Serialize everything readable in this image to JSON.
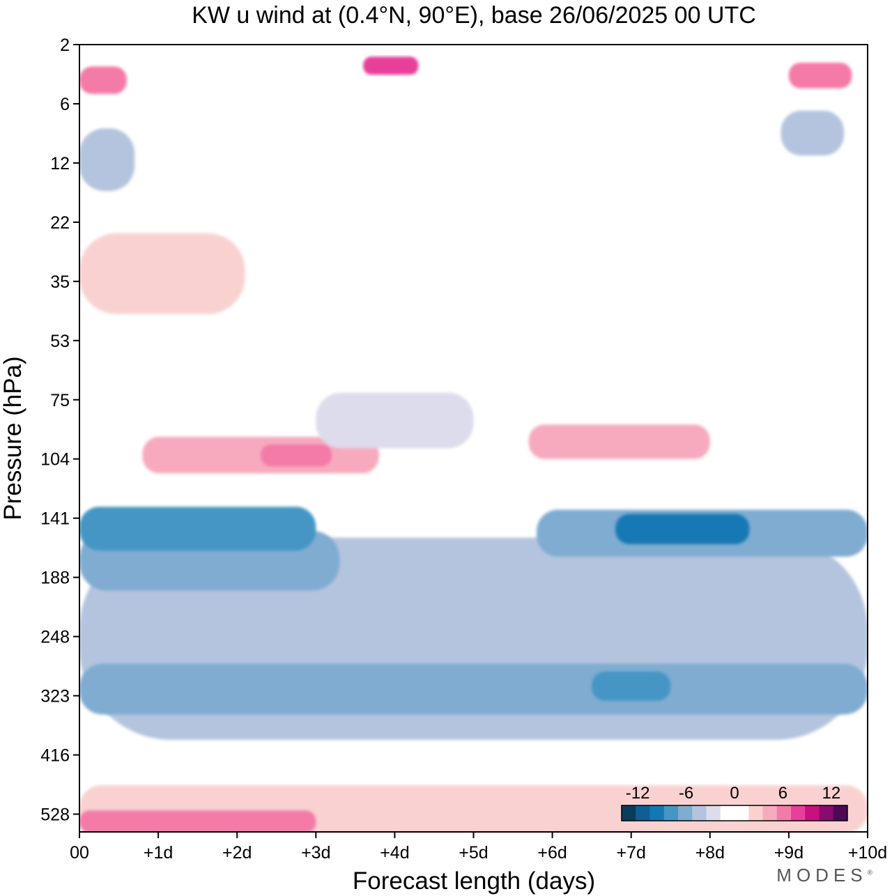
{
  "chart_data": {
    "type": "heatmap",
    "title": "KW u wind at (0.4°N, 90°E),  base 26/06/2025  00 UTC",
    "xlabel": "Forecast length (days)",
    "ylabel": "Pressure (hPa)",
    "x_ticks": [
      "00",
      "+1d",
      "+2d",
      "+3d",
      "+4d",
      "+5d",
      "+6d",
      "+7d",
      "+8d",
      "+9d",
      "+10d"
    ],
    "y_ticks": [
      "2",
      "6",
      "12",
      "22",
      "35",
      "53",
      "75",
      "104",
      "141",
      "188",
      "248",
      "323",
      "416",
      "528"
    ],
    "xlim": [
      0,
      10
    ],
    "colorbar": {
      "tick_labels": [
        "-12",
        "-6",
        "0",
        "6",
        "12"
      ],
      "tick_values": [
        -12,
        -6,
        0,
        6,
        12
      ],
      "levels": [
        -14,
        -12,
        -10,
        -8,
        -6,
        -4,
        -2,
        -1,
        1,
        2,
        4,
        6,
        8,
        10,
        12,
        14
      ],
      "colors": [
        "#0a3d5c",
        "#0e5f96",
        "#1478b4",
        "#4496c4",
        "#80acd2",
        "#b4c4de",
        "#dcdcec",
        "#ffffff",
        "#ffffff",
        "#f9d1d1",
        "#f7aabe",
        "#f47aa8",
        "#e8409a",
        "#c8107e",
        "#8a0a70",
        "#4a0a55"
      ],
      "placement": "bottom-right"
    },
    "fields": [
      {
        "value": -3,
        "day_start": 0,
        "day_end": 10,
        "p_top": 155,
        "p_bottom": 390
      },
      {
        "value": -5,
        "day_start": 0,
        "day_end": 3.3,
        "p_top": 150,
        "p_bottom": 200
      },
      {
        "value": -7,
        "day_start": 0,
        "day_end": 3.0,
        "p_top": 133,
        "p_bottom": 165
      },
      {
        "value": -5,
        "day_start": 5.8,
        "day_end": 10,
        "p_top": 135,
        "p_bottom": 170
      },
      {
        "value": -9,
        "day_start": 6.8,
        "day_end": 8.5,
        "p_top": 138,
        "p_bottom": 160
      },
      {
        "value": -5,
        "day_start": 0,
        "day_end": 10,
        "p_top": 280,
        "p_bottom": 350
      },
      {
        "value": -7,
        "day_start": 6.5,
        "day_end": 7.5,
        "p_top": 290,
        "p_bottom": 330
      },
      {
        "value": 5,
        "day_start": 0.8,
        "day_end": 3.8,
        "p_top": 92,
        "p_bottom": 112
      },
      {
        "value": 7,
        "day_start": 2.3,
        "day_end": 3.2,
        "p_top": 96,
        "p_bottom": 108
      },
      {
        "value": 4,
        "day_start": 5.7,
        "day_end": 8.0,
        "p_top": 86,
        "p_bottom": 104
      },
      {
        "value": 3,
        "day_start": 0,
        "day_end": 2.1,
        "p_top": 24,
        "p_bottom": 44
      },
      {
        "value": -2,
        "day_start": 3.0,
        "day_end": 5.0,
        "p_top": 72,
        "p_bottom": 98
      },
      {
        "value": 3,
        "day_start": 0,
        "day_end": 10,
        "p_top": 470,
        "p_bottom": 570
      },
      {
        "value": 6,
        "day_start": 0,
        "day_end": 3.0,
        "p_top": 520,
        "p_bottom": 570
      },
      {
        "value": 6,
        "day_start": 0,
        "day_end": 0.6,
        "p_top": 3,
        "p_bottom": 5
      },
      {
        "value": 8,
        "day_start": 3.6,
        "day_end": 4.3,
        "p_top": 2.5,
        "p_bottom": 3.5
      },
      {
        "value": 6,
        "day_start": 9.0,
        "day_end": 9.8,
        "p_top": 2.8,
        "p_bottom": 4.5
      },
      {
        "value": -3,
        "day_start": 0,
        "day_end": 0.7,
        "p_top": 8,
        "p_bottom": 16
      },
      {
        "value": -3,
        "day_start": 8.9,
        "day_end": 9.7,
        "p_top": 6.5,
        "p_bottom": 11
      }
    ]
  }
}
